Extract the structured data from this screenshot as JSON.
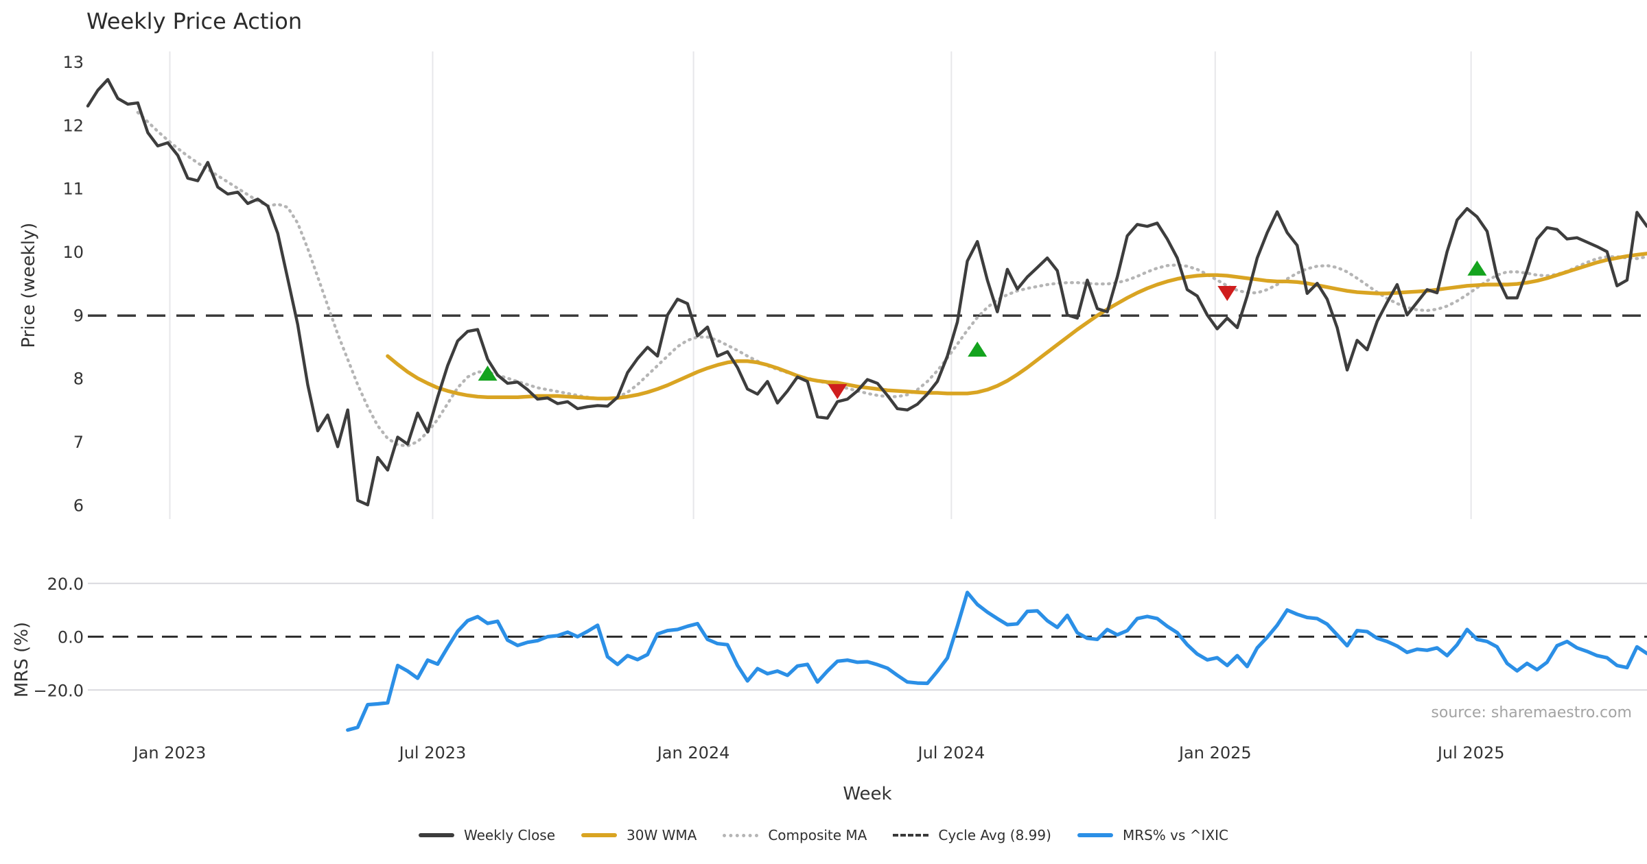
{
  "title": "Weekly Price Action",
  "source_note": "source: sharemaestro.com",
  "colors": {
    "close": "#3d3d3d",
    "wma": "#d9a422",
    "composite": "#b5b5b5",
    "cycle_avg": "#3a3a3a",
    "mrs": "#2b8fe6",
    "buy_marker": "#14a31e",
    "sell_marker": "#cf1d1d",
    "grid": "#e7e7ea",
    "grid_h": "#d9d9de",
    "tick_text": "#333333",
    "title_text": "#2b2b2b",
    "source_text": "#a3a3a3"
  },
  "x_axis": {
    "label": "Week",
    "tick_labels": [
      "Jan 2023",
      "Jul 2023",
      "Jan 2024",
      "Jul 2024",
      "Jan 2025",
      "Jul 2025"
    ],
    "tick_weeks": [
      8.2,
      34.5,
      60.6,
      86.4,
      112.8,
      138.4
    ]
  },
  "legend": [
    {
      "label": "Weekly Close",
      "swatch": "solid",
      "color": "#3d3d3d"
    },
    {
      "label": "30W WMA",
      "swatch": "solid",
      "color": "#d9a422"
    },
    {
      "label": "Composite MA",
      "swatch": "dotted",
      "color": "#b5b5b5"
    },
    {
      "label": "Cycle Avg (8.99)",
      "swatch": "dashed",
      "color": "#3a3a3a"
    },
    {
      "label": "MRS% vs ^IXIC",
      "swatch": "solid",
      "color": "#2b8fe6"
    }
  ],
  "chart_data": [
    {
      "type": "line",
      "panel": "price",
      "ylabel": "Price (weekly)",
      "ylim": [
        5.76,
        13.16
      ],
      "yticks": [
        13,
        12,
        11,
        10,
        9,
        8,
        7,
        6
      ],
      "ytick_labels": [
        "13",
        "12",
        "11",
        "10",
        "9",
        "8",
        "7",
        "6"
      ],
      "grid": "vertical-only",
      "cycle_avg": 8.99,
      "series": [
        {
          "name": "Weekly Close",
          "start_week": 0,
          "values": [
            12.3,
            12.55,
            12.72,
            12.42,
            12.33,
            12.35,
            11.88,
            11.67,
            11.72,
            11.52,
            11.16,
            11.12,
            11.41,
            11.02,
            10.91,
            10.94,
            10.76,
            10.83,
            10.72,
            10.29,
            9.57,
            8.85,
            7.9,
            7.17,
            7.42,
            6.92,
            7.5,
            6.07,
            6.0,
            6.75,
            6.55,
            7.07,
            6.96,
            7.45,
            7.15,
            7.7,
            8.2,
            8.59,
            8.74,
            8.77,
            8.3,
            8.05,
            7.92,
            7.94,
            7.82,
            7.67,
            7.69,
            7.6,
            7.63,
            7.52,
            7.55,
            7.57,
            7.56,
            7.7,
            8.09,
            8.31,
            8.49,
            8.35,
            9.0,
            9.25,
            9.18,
            8.67,
            8.81,
            8.35,
            8.42,
            8.17,
            7.83,
            7.75,
            7.95,
            7.61,
            7.8,
            8.02,
            7.95,
            7.39,
            7.37,
            7.63,
            7.67,
            7.8,
            7.98,
            7.92,
            7.73,
            7.52,
            7.5,
            7.59,
            7.75,
            7.95,
            8.35,
            8.89,
            9.85,
            10.16,
            9.55,
            9.05,
            9.72,
            9.41,
            9.6,
            9.75,
            9.9,
            9.7,
            9.0,
            8.95,
            9.55,
            9.1,
            9.05,
            9.6,
            10.25,
            10.43,
            10.4,
            10.45,
            10.2,
            9.9,
            9.4,
            9.3,
            9.0,
            8.78,
            8.95,
            8.8,
            9.3,
            9.9,
            10.3,
            10.63,
            10.3,
            10.1,
            9.34,
            9.5,
            9.25,
            8.8,
            8.13,
            8.6,
            8.45,
            8.9,
            9.2,
            9.48,
            9.0,
            9.2,
            9.4,
            9.35,
            10.0,
            10.5,
            10.68,
            10.55,
            10.32,
            9.6,
            9.27,
            9.27,
            9.7,
            10.2,
            10.38,
            10.35,
            10.2,
            10.22,
            10.15,
            10.08,
            10.0,
            9.46,
            9.55,
            10.62,
            10.4
          ]
        },
        {
          "name": "30W WMA",
          "start_week": 30,
          "values": [
            8.35,
            8.22,
            8.1,
            8.0,
            7.92,
            7.85,
            7.8,
            7.76,
            7.73,
            7.71,
            7.7,
            7.7,
            7.7,
            7.7,
            7.71,
            7.72,
            7.72,
            7.72,
            7.71,
            7.7,
            7.69,
            7.68,
            7.68,
            7.69,
            7.71,
            7.74,
            7.78,
            7.83,
            7.89,
            7.96,
            8.03,
            8.1,
            8.16,
            8.21,
            8.25,
            8.27,
            8.27,
            8.25,
            8.21,
            8.16,
            8.1,
            8.04,
            7.99,
            7.96,
            7.94,
            7.93,
            7.9,
            7.87,
            7.85,
            7.83,
            7.81,
            7.8,
            7.79,
            7.78,
            7.77,
            7.77,
            7.76,
            7.76,
            7.76,
            7.78,
            7.82,
            7.88,
            7.96,
            8.06,
            8.17,
            8.29,
            8.41,
            8.53,
            8.65,
            8.77,
            8.88,
            8.99,
            9.09,
            9.18,
            9.27,
            9.35,
            9.42,
            9.48,
            9.53,
            9.57,
            9.6,
            9.62,
            9.63,
            9.63,
            9.62,
            9.6,
            9.58,
            9.56,
            9.54,
            9.53,
            9.53,
            9.52,
            9.5,
            9.47,
            9.44,
            9.41,
            9.38,
            9.36,
            9.35,
            9.34,
            9.34,
            9.35,
            9.36,
            9.37,
            9.38,
            9.4,
            9.42,
            9.44,
            9.46,
            9.47,
            9.48,
            9.48,
            9.48,
            9.49,
            9.51,
            9.54,
            9.58,
            9.63,
            9.68,
            9.73,
            9.78,
            9.83,
            9.87,
            9.9,
            9.93,
            9.95,
            9.97
          ]
        },
        {
          "name": "Composite MA",
          "start_week": 5,
          "values": [
            12.2,
            12.05,
            11.9,
            11.76,
            11.63,
            11.51,
            11.4,
            11.3,
            11.2,
            11.1,
            11.0,
            10.9,
            10.8,
            10.72,
            10.75,
            10.7,
            10.45,
            10.05,
            9.6,
            9.15,
            8.7,
            8.3,
            7.9,
            7.55,
            7.25,
            7.05,
            6.95,
            6.93,
            7.0,
            7.15,
            7.35,
            7.6,
            7.85,
            8.02,
            8.1,
            8.1,
            8.05,
            8.0,
            7.95,
            7.9,
            7.85,
            7.82,
            7.79,
            7.76,
            7.73,
            7.7,
            7.68,
            7.67,
            7.7,
            7.78,
            7.9,
            8.05,
            8.2,
            8.35,
            8.5,
            8.6,
            8.65,
            8.65,
            8.6,
            8.52,
            8.44,
            8.35,
            8.27,
            8.2,
            8.14,
            8.09,
            8.04,
            8.0,
            7.96,
            7.92,
            7.88,
            7.84,
            7.8,
            7.76,
            7.73,
            7.71,
            7.71,
            7.74,
            7.82,
            7.95,
            8.12,
            8.32,
            8.54,
            8.76,
            8.96,
            9.12,
            9.24,
            9.32,
            9.38,
            9.42,
            9.45,
            9.48,
            9.5,
            9.51,
            9.51,
            9.5,
            9.49,
            9.49,
            9.51,
            9.55,
            9.61,
            9.68,
            9.74,
            9.78,
            9.79,
            9.77,
            9.72,
            9.64,
            9.55,
            9.46,
            9.39,
            9.35,
            9.35,
            9.4,
            9.48,
            9.57,
            9.66,
            9.73,
            9.77,
            9.78,
            9.75,
            9.68,
            9.58,
            9.47,
            9.36,
            9.26,
            9.18,
            9.12,
            9.08,
            9.07,
            9.09,
            9.14,
            9.22,
            9.32,
            9.43,
            9.54,
            9.63,
            9.68,
            9.68,
            9.66,
            9.63,
            9.62,
            9.64,
            9.69,
            9.76,
            9.83,
            9.89,
            9.92,
            9.92,
            9.9,
            9.89,
            9.92
          ]
        }
      ],
      "markers": [
        {
          "week": 40,
          "value": 8.07,
          "type": "buy"
        },
        {
          "week": 89,
          "value": 8.45,
          "type": "buy"
        },
        {
          "week": 139,
          "value": 9.73,
          "type": "buy"
        },
        {
          "week": 75,
          "value": 7.8,
          "type": "sell"
        },
        {
          "week": 114,
          "value": 9.35,
          "type": "sell"
        }
      ]
    },
    {
      "type": "line",
      "panel": "mrs",
      "ylabel": "MRS (%)",
      "ylim": [
        -36.5,
        22.0
      ],
      "yticks": [
        20,
        0,
        -20
      ],
      "ytick_labels": [
        "20.0",
        "0.0",
        "−20.0"
      ],
      "grid": "horizontal-only",
      "zero_line_dashed": true,
      "series": [
        {
          "name": "MRS% vs ^IXIC",
          "start_week": 26,
          "values": [
            -35.0,
            -34.0,
            -25.5,
            -25.2,
            -24.8,
            -10.8,
            -12.9,
            -15.6,
            -8.8,
            -10.3,
            -4.0,
            2.0,
            6.0,
            7.5,
            5.0,
            5.8,
            -1.3,
            -3.3,
            -2.1,
            -1.5,
            0.0,
            0.4,
            1.7,
            0.0,
            2.0,
            4.3,
            -7.5,
            -10.4,
            -7.1,
            -8.6,
            -6.7,
            1.0,
            2.3,
            2.7,
            3.9,
            4.9,
            -1.0,
            -2.6,
            -3.0,
            -10.8,
            -16.6,
            -12.0,
            -13.9,
            -12.9,
            -14.5,
            -11.0,
            -10.4,
            -17.0,
            -12.9,
            -9.2,
            -8.8,
            -9.6,
            -9.4,
            -10.5,
            -11.8,
            -14.5,
            -17.0,
            -17.4,
            -17.5,
            -13.0,
            -8.0,
            4.0,
            16.6,
            12.1,
            9.2,
            6.8,
            4.5,
            4.8,
            9.5,
            9.7,
            6.0,
            3.5,
            8.0,
            1.5,
            -0.6,
            -1.0,
            2.7,
            0.7,
            2.3,
            6.8,
            7.6,
            6.8,
            3.9,
            1.5,
            -3.0,
            -6.5,
            -8.7,
            -7.9,
            -10.8,
            -7.1,
            -11.2,
            -4.2,
            -0.2,
            4.3,
            10.0,
            8.4,
            7.2,
            6.8,
            4.7,
            0.7,
            -3.4,
            2.3,
            1.9,
            -0.6,
            -1.8,
            -3.5,
            -5.9,
            -4.7,
            -5.1,
            -4.2,
            -7.1,
            -3.0,
            2.7,
            -1.0,
            -1.8,
            -3.8,
            -10.0,
            -12.8,
            -10.0,
            -12.4,
            -9.6,
            -3.4,
            -1.8,
            -4.2,
            -5.5,
            -7.1,
            -7.9,
            -10.8,
            -11.6,
            -3.8,
            -6.3
          ]
        }
      ]
    }
  ]
}
